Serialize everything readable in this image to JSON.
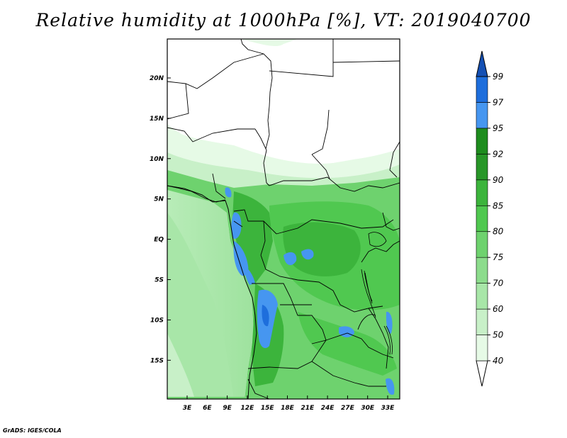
{
  "title": "Relative humidity at 1000hPa [%], VT: 2019040700",
  "credit": "GrADS: IGES/COLA",
  "map": {
    "lon_labels": [
      "3E",
      "6E",
      "9E",
      "12E",
      "15E",
      "18E",
      "21E",
      "24E",
      "27E",
      "30E",
      "33E"
    ],
    "lat_labels": [
      "20N",
      "15N",
      "10N",
      "5N",
      "EQ",
      "5S",
      "10S",
      "15S"
    ]
  },
  "colorbar": {
    "levels": [
      "40",
      "50",
      "60",
      "70",
      "75",
      "80",
      "85",
      "90",
      "92",
      "95",
      "97",
      "99"
    ],
    "colors": [
      "#ffffff",
      "#e6fae6",
      "#c8f0c8",
      "#a8e6a8",
      "#8cdc8c",
      "#6ed26e",
      "#50c850",
      "#3cb43c",
      "#289628",
      "#1e8c1e",
      "#4696f0",
      "#1e6edc",
      "#1450b4"
    ]
  }
}
